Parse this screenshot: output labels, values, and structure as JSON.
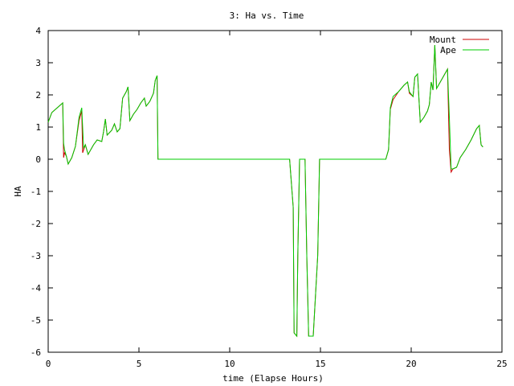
{
  "chart_data": {
    "type": "line",
    "title": "3: Ha vs. Time",
    "xlabel": "time (Elapse Hours)",
    "ylabel": "HA",
    "xlim": [
      0,
      25
    ],
    "ylim": [
      -6,
      4
    ],
    "x_ticks": [
      0,
      5,
      10,
      15,
      20,
      25
    ],
    "y_ticks": [
      -6,
      -5,
      -4,
      -3,
      -2,
      -1,
      0,
      1,
      2,
      3,
      4
    ],
    "grid": false,
    "legend_position": "top-right",
    "series": [
      {
        "name": "Mount",
        "color": "#cc0000",
        "points": [
          [
            0,
            1.15
          ],
          [
            0.2,
            1.45
          ],
          [
            0.4,
            1.55
          ],
          [
            0.6,
            1.65
          ],
          [
            0.8,
            1.75
          ],
          [
            0.85,
            0.05
          ],
          [
            0.9,
            0.2
          ],
          [
            1.0,
            0.1
          ],
          [
            1.1,
            -0.15
          ],
          [
            1.3,
            0.05
          ],
          [
            1.5,
            0.4
          ],
          [
            1.7,
            1.2
          ],
          [
            1.85,
            1.5
          ],
          [
            1.9,
            0.2
          ],
          [
            2.05,
            0.45
          ],
          [
            2.2,
            0.15
          ],
          [
            2.5,
            0.45
          ],
          [
            2.7,
            0.6
          ],
          [
            2.95,
            0.55
          ],
          [
            3.05,
            0.85
          ],
          [
            3.15,
            1.25
          ],
          [
            3.25,
            0.75
          ],
          [
            3.5,
            0.9
          ],
          [
            3.65,
            1.1
          ],
          [
            3.8,
            0.85
          ],
          [
            3.95,
            0.95
          ],
          [
            4.1,
            1.9
          ],
          [
            4.3,
            2.1
          ],
          [
            4.4,
            2.25
          ],
          [
            4.5,
            1.2
          ],
          [
            4.7,
            1.4
          ],
          [
            4.9,
            1.55
          ],
          [
            5.1,
            1.75
          ],
          [
            5.3,
            1.9
          ],
          [
            5.4,
            1.65
          ],
          [
            5.6,
            1.8
          ],
          [
            5.8,
            2.05
          ],
          [
            5.9,
            2.45
          ],
          [
            6.0,
            2.6
          ],
          [
            6.05,
            0.0
          ],
          [
            13.3,
            0.0
          ],
          [
            13.5,
            -1.5
          ],
          [
            13.55,
            -5.4
          ],
          [
            13.7,
            -5.5
          ],
          [
            13.75,
            -3.0
          ],
          [
            13.85,
            0.0
          ],
          [
            14.15,
            0.0
          ],
          [
            14.25,
            -3.0
          ],
          [
            14.35,
            -5.5
          ],
          [
            14.6,
            -5.5
          ],
          [
            14.85,
            -3.0
          ],
          [
            14.95,
            0.0
          ],
          [
            18.6,
            0.0
          ],
          [
            18.75,
            0.3
          ],
          [
            18.85,
            1.55
          ],
          [
            19.0,
            1.85
          ],
          [
            19.3,
            2.1
          ],
          [
            19.6,
            2.3
          ],
          [
            19.8,
            2.4
          ],
          [
            19.9,
            2.05
          ],
          [
            20.1,
            1.95
          ],
          [
            20.2,
            2.55
          ],
          [
            20.35,
            2.65
          ],
          [
            20.5,
            1.15
          ],
          [
            20.7,
            1.3
          ],
          [
            20.9,
            1.5
          ],
          [
            21.0,
            1.7
          ],
          [
            21.1,
            2.4
          ],
          [
            21.2,
            2.15
          ],
          [
            21.3,
            3.55
          ],
          [
            21.4,
            2.2
          ],
          [
            21.6,
            2.4
          ],
          [
            21.8,
            2.6
          ],
          [
            22.0,
            2.8
          ],
          [
            22.1,
            0.3
          ],
          [
            22.2,
            -0.4
          ],
          [
            22.3,
            -0.3
          ],
          [
            22.5,
            -0.25
          ],
          [
            22.7,
            0.05
          ],
          [
            23.0,
            0.3
          ],
          [
            23.3,
            0.6
          ],
          [
            23.6,
            0.95
          ],
          [
            23.75,
            1.05
          ],
          [
            23.85,
            0.45
          ],
          [
            23.95,
            0.38
          ]
        ]
      },
      {
        "name": "Ape",
        "color": "#00cc00",
        "points": [
          [
            0,
            1.15
          ],
          [
            0.2,
            1.45
          ],
          [
            0.4,
            1.55
          ],
          [
            0.6,
            1.65
          ],
          [
            0.8,
            1.75
          ],
          [
            0.85,
            0.5
          ],
          [
            0.9,
            0.3
          ],
          [
            1.0,
            0.1
          ],
          [
            1.1,
            -0.15
          ],
          [
            1.3,
            0.05
          ],
          [
            1.5,
            0.4
          ],
          [
            1.7,
            1.3
          ],
          [
            1.85,
            1.6
          ],
          [
            1.95,
            0.35
          ],
          [
            2.05,
            0.45
          ],
          [
            2.2,
            0.15
          ],
          [
            2.5,
            0.45
          ],
          [
            2.7,
            0.6
          ],
          [
            2.95,
            0.55
          ],
          [
            3.05,
            0.85
          ],
          [
            3.15,
            1.25
          ],
          [
            3.25,
            0.75
          ],
          [
            3.5,
            0.9
          ],
          [
            3.65,
            1.1
          ],
          [
            3.8,
            0.85
          ],
          [
            3.95,
            0.95
          ],
          [
            4.1,
            1.9
          ],
          [
            4.3,
            2.1
          ],
          [
            4.4,
            2.25
          ],
          [
            4.5,
            1.2
          ],
          [
            4.7,
            1.4
          ],
          [
            4.9,
            1.55
          ],
          [
            5.1,
            1.75
          ],
          [
            5.3,
            1.9
          ],
          [
            5.4,
            1.65
          ],
          [
            5.6,
            1.8
          ],
          [
            5.8,
            2.05
          ],
          [
            5.9,
            2.45
          ],
          [
            6.0,
            2.6
          ],
          [
            6.05,
            0.0
          ],
          [
            13.3,
            0.0
          ],
          [
            13.5,
            -1.5
          ],
          [
            13.55,
            -5.4
          ],
          [
            13.7,
            -5.5
          ],
          [
            13.75,
            -3.0
          ],
          [
            13.85,
            0.0
          ],
          [
            14.15,
            0.0
          ],
          [
            14.25,
            -3.0
          ],
          [
            14.35,
            -5.5
          ],
          [
            14.6,
            -5.5
          ],
          [
            14.85,
            -3.0
          ],
          [
            14.95,
            0.0
          ],
          [
            18.6,
            0.0
          ],
          [
            18.75,
            0.3
          ],
          [
            18.85,
            1.6
          ],
          [
            19.0,
            1.95
          ],
          [
            19.3,
            2.1
          ],
          [
            19.6,
            2.3
          ],
          [
            19.8,
            2.4
          ],
          [
            19.9,
            2.1
          ],
          [
            20.1,
            1.95
          ],
          [
            20.2,
            2.55
          ],
          [
            20.35,
            2.65
          ],
          [
            20.5,
            1.15
          ],
          [
            20.7,
            1.3
          ],
          [
            20.9,
            1.5
          ],
          [
            21.0,
            1.7
          ],
          [
            21.1,
            2.4
          ],
          [
            21.2,
            2.15
          ],
          [
            21.3,
            3.55
          ],
          [
            21.4,
            2.2
          ],
          [
            21.6,
            2.4
          ],
          [
            21.8,
            2.6
          ],
          [
            22.0,
            2.8
          ],
          [
            22.1,
            1.3
          ],
          [
            22.2,
            -0.3
          ],
          [
            22.3,
            -0.3
          ],
          [
            22.5,
            -0.25
          ],
          [
            22.7,
            0.05
          ],
          [
            23.0,
            0.3
          ],
          [
            23.3,
            0.6
          ],
          [
            23.6,
            0.95
          ],
          [
            23.75,
            1.05
          ],
          [
            23.85,
            0.45
          ],
          [
            23.95,
            0.38
          ]
        ]
      }
    ]
  }
}
